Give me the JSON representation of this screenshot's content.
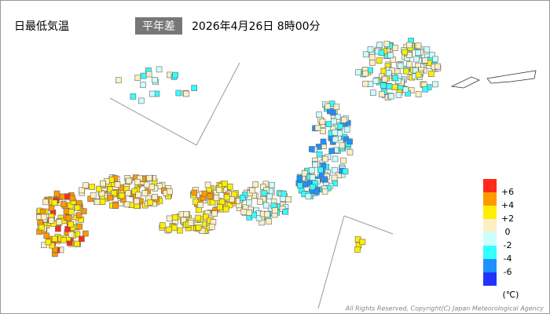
{
  "header": {
    "title": "日最低気温",
    "badge": "平年差",
    "timestamp": "2026年4月26日 8時00分"
  },
  "legend": {
    "labels": [
      "+6",
      "+4",
      "+2",
      "0",
      "-2",
      "-4",
      "-6"
    ],
    "colors": [
      "#ff2a1a",
      "#ff9900",
      "#ffee00",
      "#fbf0c4",
      "#ccffff",
      "#33ffff",
      "#1e90ff",
      "#2233ff"
    ],
    "unit": "(℃)"
  },
  "footer": {
    "copyright": "All Rights Reserved, Copyright(C) Japan Meteorological Agency"
  }
}
